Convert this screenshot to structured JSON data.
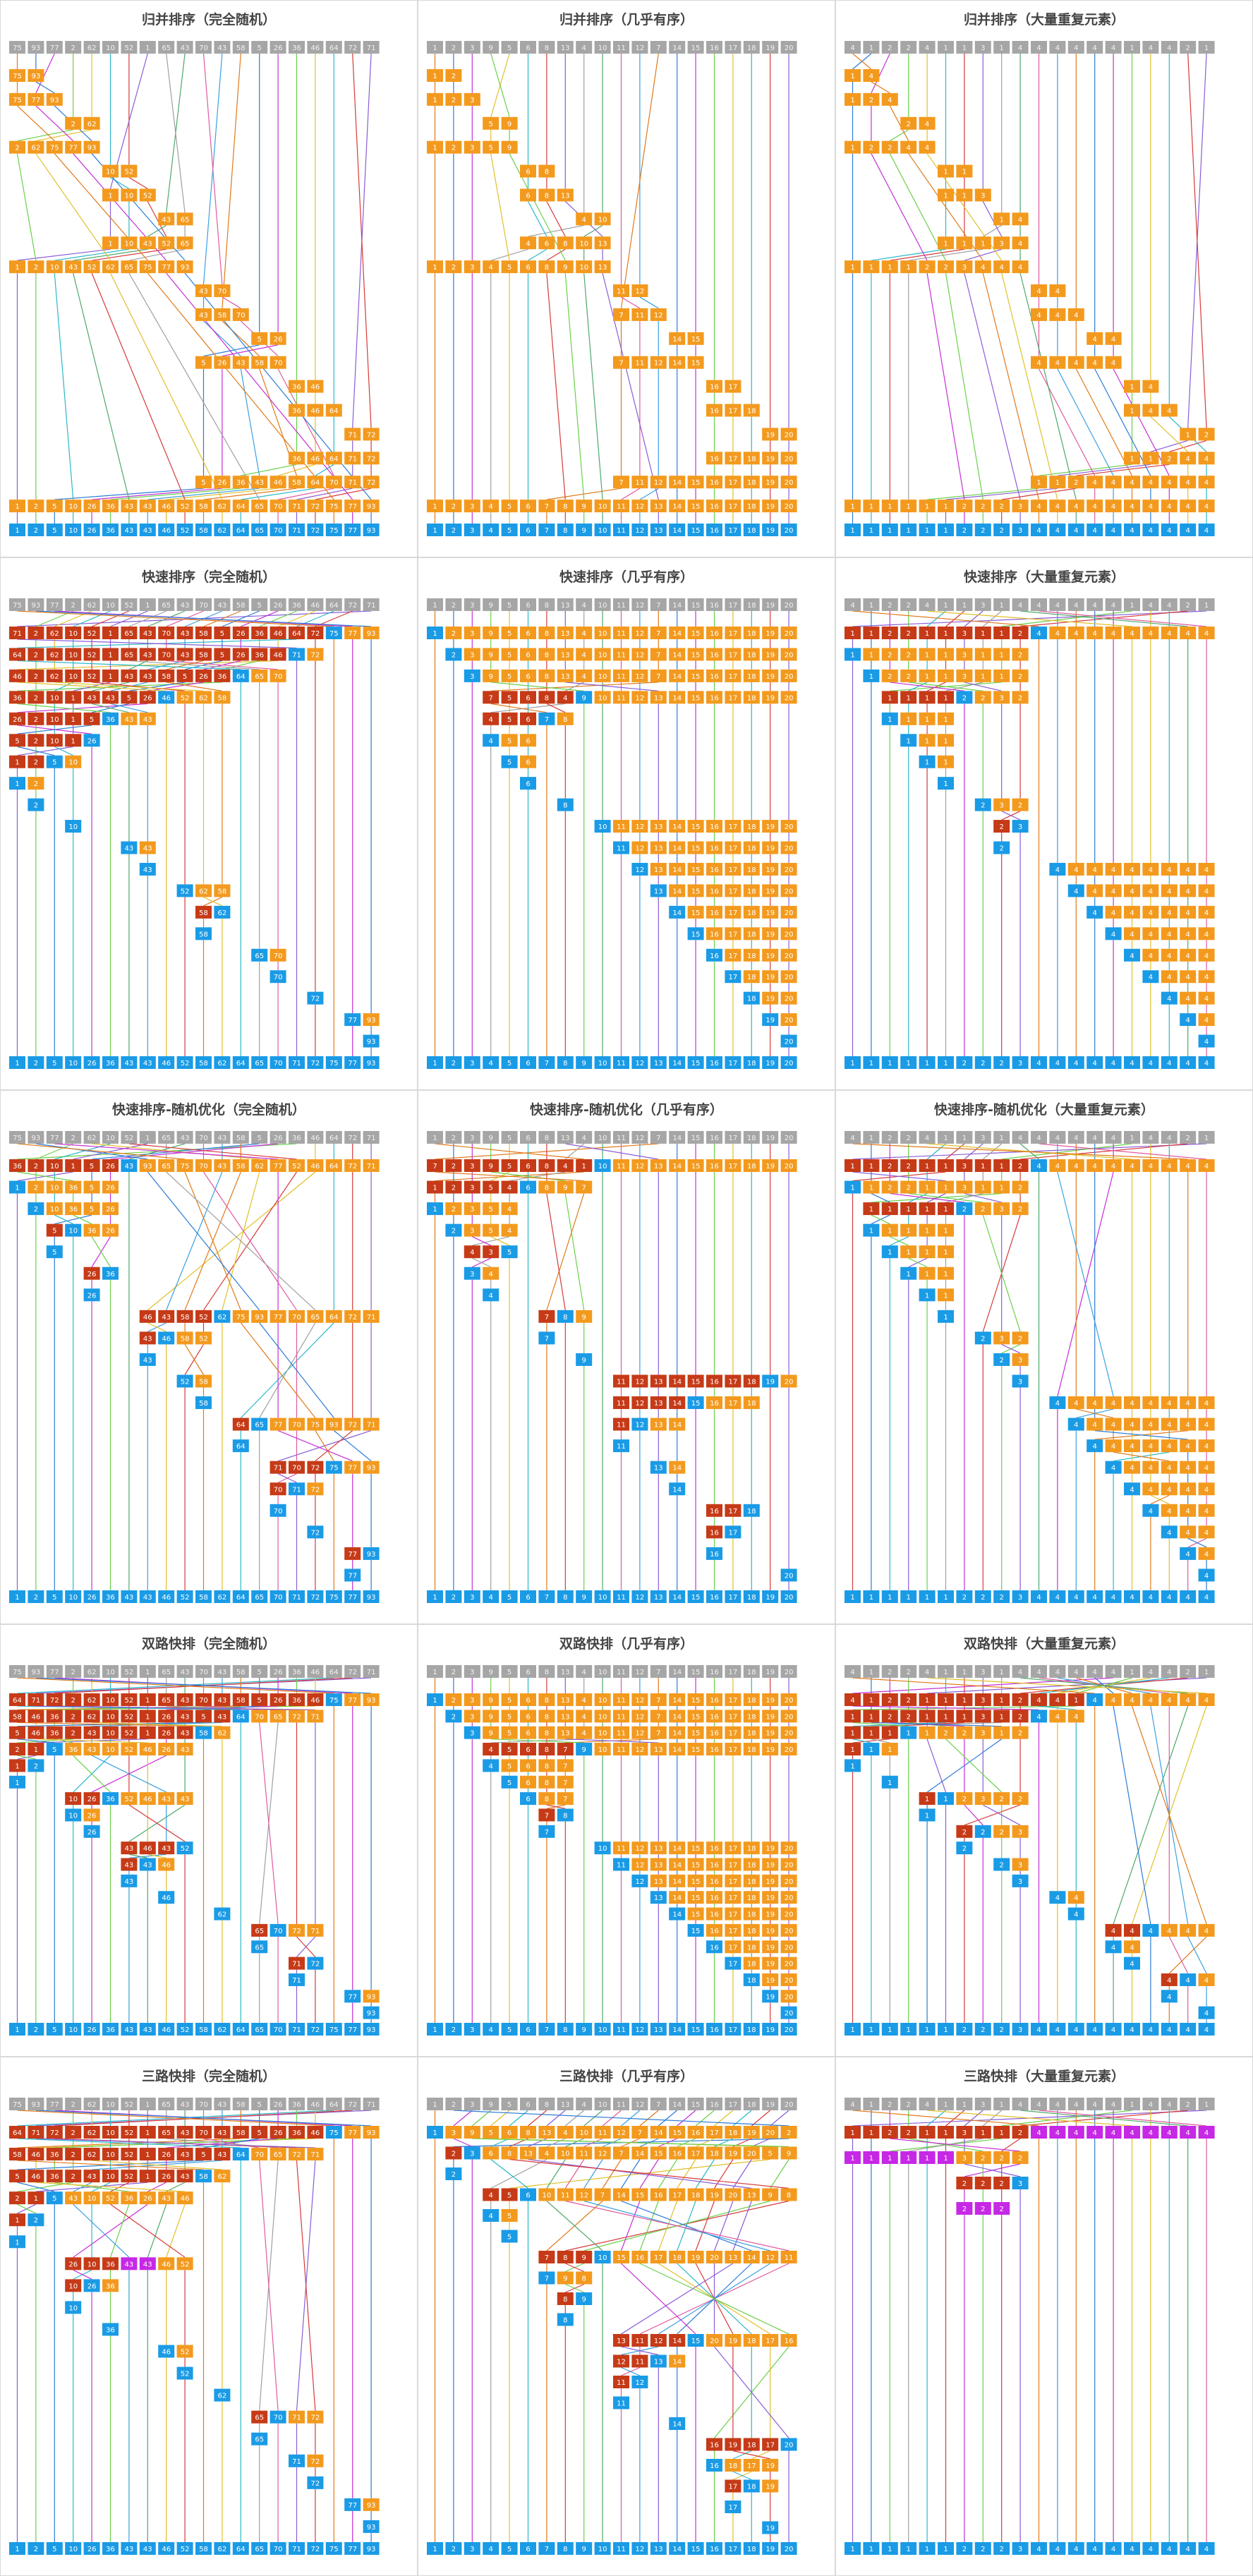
{
  "colors": {
    "gray": "#a6a6a6",
    "orange": "#f39a1e",
    "red": "#c63a17",
    "blue": "#1a9be6",
    "magenta": "#c628e6",
    "panel_border": "#d9d9d9",
    "lines": [
      "#e07a1a",
      "#2b7bd6",
      "#c62fd6",
      "#6ad04a",
      "#e0c02a",
      "#2ab8c9",
      "#d63a3a",
      "#8a5cd6",
      "#a0a0a0",
      "#4fa86a",
      "#e05aa0",
      "#3aa0e0"
    ]
  },
  "inputs": {
    "random": [
      75,
      93,
      77,
      2,
      62,
      10,
      52,
      1,
      65,
      43,
      70,
      43,
      58,
      5,
      26,
      36,
      46,
      64,
      72,
      71
    ],
    "nearly": [
      1,
      2,
      3,
      9,
      5,
      6,
      8,
      13,
      4,
      10,
      11,
      12,
      7,
      14,
      15,
      16,
      17,
      18,
      19,
      20
    ],
    "dups": [
      4,
      1,
      2,
      2,
      4,
      1,
      1,
      3,
      1,
      4,
      4,
      4,
      4,
      4,
      4,
      1,
      4,
      4,
      2,
      1
    ]
  },
  "rows": [
    {
      "panels": [
        {
          "title": "归并排序（完全随机）",
          "input": "random",
          "algo": "merge"
        },
        {
          "title": "归并排序（几乎有序）",
          "input": "nearly",
          "algo": "merge"
        },
        {
          "title": "归并排序（大量重复元素）",
          "input": "dups",
          "algo": "merge"
        }
      ]
    },
    {
      "panels": [
        {
          "title": "快速排序（完全随机）",
          "input": "random",
          "algo": "quick"
        },
        {
          "title": "快速排序（几乎有序）",
          "input": "nearly",
          "algo": "quick"
        },
        {
          "title": "快速排序（大量重复元素）",
          "input": "dups",
          "algo": "quick"
        }
      ]
    },
    {
      "panels": [
        {
          "title": "快速排序-随机优化（完全随机）",
          "input": "random",
          "algo": "quick_rand"
        },
        {
          "title": "快速排序-随机优化（几乎有序）",
          "input": "nearly",
          "algo": "quick_rand"
        },
        {
          "title": "快速排序-随机优化（大量重复元素）",
          "input": "dups",
          "algo": "quick_rand"
        }
      ]
    },
    {
      "panels": [
        {
          "title": "双路快排（完全随机）",
          "input": "random",
          "algo": "quick2"
        },
        {
          "title": "双路快排（几乎有序）",
          "input": "nearly",
          "algo": "quick2"
        },
        {
          "title": "双路快排（大量重复元素）",
          "input": "dups",
          "algo": "quick2"
        }
      ]
    },
    {
      "panels": [
        {
          "title": "三路快排（完全随机）",
          "input": "random",
          "algo": "quick3"
        },
        {
          "title": "三路快排（几乎有序）",
          "input": "nearly",
          "algo": "quick3"
        },
        {
          "title": "三路快排（大量重复元素）",
          "input": "dups",
          "algo": "quick3"
        }
      ]
    }
  ]
}
